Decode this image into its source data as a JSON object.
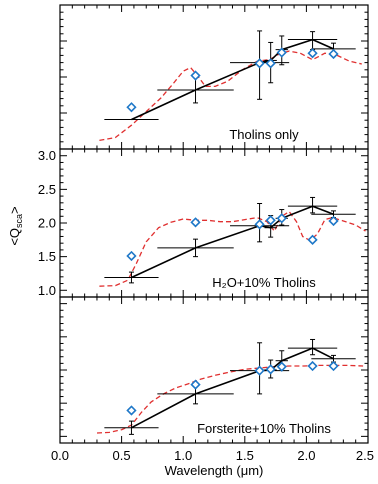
{
  "figure": {
    "ylabel": "<Q",
    "ylabel_sub": "sca",
    "ylabel_end": ">",
    "xlabel": "Wavelength (μm)"
  },
  "colors": {
    "measured": "#000000",
    "model_markers": "#1f78c8",
    "model_curve": "#e03030"
  },
  "chart_data": [
    {
      "type": "line",
      "panel_label": "Tholins only",
      "xlim": [
        0.0,
        2.5
      ],
      "ylim": [
        1.0,
        3.0
      ],
      "show_y_ticklabels": false,
      "series": [
        {
          "kind": "measured",
          "x": [
            0.58,
            1.1,
            1.62,
            1.71,
            1.8,
            2.05,
            2.22
          ],
          "y": [
            1.41,
            1.82,
            2.2,
            2.23,
            2.38,
            2.52,
            2.39
          ],
          "x_err": [
            0.22,
            0.31,
            0.24,
            0.05,
            0.05,
            0.2,
            0.18
          ],
          "y_err_low": [
            0.0,
            0.18,
            0.51,
            0.31,
            0.21,
            0.14,
            0.08
          ],
          "y_err_high": [
            0.0,
            0.18,
            0.44,
            0.25,
            0.19,
            0.11,
            0.08
          ]
        },
        {
          "kind": "model_points",
          "x": [
            0.58,
            1.1,
            1.62,
            1.71,
            1.8,
            2.05,
            2.22
          ],
          "y": [
            1.58,
            2.02,
            2.19,
            2.19,
            2.34,
            2.33,
            2.32
          ]
        },
        {
          "kind": "model_curve",
          "x": [
            0.32,
            0.45,
            0.58,
            0.7,
            0.82,
            0.92,
            1.0,
            1.06,
            1.12,
            1.18,
            1.26,
            1.36,
            1.48,
            1.6,
            1.7,
            1.78,
            1.86,
            1.95,
            2.05,
            2.15,
            2.25,
            2.35,
            2.45
          ],
          "y": [
            1.12,
            1.16,
            1.33,
            1.52,
            1.71,
            1.91,
            2.08,
            2.13,
            2.01,
            1.87,
            1.87,
            1.94,
            2.1,
            2.22,
            2.24,
            2.32,
            2.36,
            2.33,
            2.24,
            2.33,
            2.3,
            2.22,
            2.18
          ]
        }
      ]
    },
    {
      "type": "line",
      "panel_label": "H₂O+10% Tholins",
      "xlim": [
        0.0,
        2.5
      ],
      "ylim": [
        0.9,
        3.1
      ],
      "show_y_ticklabels": true,
      "yticks": [
        1.0,
        1.5,
        2.0,
        2.5,
        3.0
      ],
      "series": [
        {
          "kind": "measured",
          "x": [
            0.58,
            1.1,
            1.62,
            1.71,
            1.8,
            2.05,
            2.22
          ],
          "y": [
            1.19,
            1.63,
            1.96,
            1.93,
            2.07,
            2.25,
            2.13
          ],
          "x_err": [
            0.22,
            0.31,
            0.24,
            0.05,
            0.05,
            0.2,
            0.18
          ],
          "y_err_low": [
            0.08,
            0.13,
            0.24,
            0.14,
            0.1,
            0.1,
            0.05
          ],
          "y_err_high": [
            0.08,
            0.13,
            0.33,
            0.18,
            0.13,
            0.13,
            0.05
          ]
        },
        {
          "kind": "model_points",
          "x": [
            0.58,
            1.1,
            1.62,
            1.71,
            1.8,
            2.05,
            2.22
          ],
          "y": [
            1.51,
            2.01,
            1.98,
            2.04,
            2.07,
            1.75,
            2.03
          ]
        },
        {
          "kind": "model_curve",
          "x": [
            0.32,
            0.45,
            0.55,
            0.62,
            0.7,
            0.8,
            0.9,
            1.0,
            1.1,
            1.2,
            1.3,
            1.4,
            1.5,
            1.6,
            1.68,
            1.74,
            1.8,
            1.86,
            1.92,
            1.97,
            2.03,
            2.09,
            2.15,
            2.21,
            2.3,
            2.4,
            2.48
          ],
          "y": [
            1.06,
            1.07,
            1.15,
            1.4,
            1.72,
            1.93,
            2.01,
            2.06,
            2.04,
            2.04,
            2.02,
            2.02,
            2.05,
            2.08,
            2.02,
            1.88,
            2.1,
            2.17,
            2.02,
            1.8,
            1.74,
            1.84,
            2.05,
            2.08,
            2.03,
            1.97,
            1.88
          ]
        }
      ]
    },
    {
      "type": "line",
      "panel_label": "Forsterite+10% Tholins",
      "xlim": [
        0.0,
        2.5
      ],
      "ylim": [
        0.9,
        3.1
      ],
      "show_y_ticklabels": false,
      "series": [
        {
          "kind": "measured",
          "x": [
            0.58,
            1.1,
            1.62,
            1.71,
            1.8,
            2.05,
            2.22
          ],
          "y": [
            1.13,
            1.64,
            1.99,
            2.0,
            2.14,
            2.33,
            2.17
          ],
          "x_err": [
            0.22,
            0.31,
            0.24,
            0.05,
            0.05,
            0.2,
            0.18
          ],
          "y_err_low": [
            0.1,
            0.15,
            0.35,
            0.12,
            0.12,
            0.1,
            0.05
          ],
          "y_err_high": [
            0.1,
            0.15,
            0.42,
            0.15,
            0.15,
            0.13,
            0.05
          ]
        },
        {
          "kind": "model_points",
          "x": [
            0.58,
            1.1,
            1.62,
            1.71,
            1.8,
            2.05,
            2.22
          ],
          "y": [
            1.39,
            1.78,
            1.99,
            2.01,
            2.05,
            2.06,
            2.06
          ]
        },
        {
          "kind": "model_curve",
          "x": [
            0.3,
            0.4,
            0.5,
            0.58,
            0.66,
            0.74,
            0.84,
            0.94,
            1.04,
            1.14,
            1.26,
            1.38,
            1.5,
            1.62,
            1.74,
            1.86,
            1.98,
            2.1,
            2.22,
            2.34,
            2.46
          ],
          "y": [
            1.05,
            1.06,
            1.1,
            1.17,
            1.36,
            1.52,
            1.64,
            1.73,
            1.79,
            1.86,
            1.92,
            1.97,
            2.01,
            2.03,
            2.05,
            2.06,
            2.06,
            2.07,
            2.07,
            2.07,
            2.06
          ]
        }
      ]
    }
  ],
  "x_axis": {
    "ticks": [
      0.0,
      0.5,
      1.0,
      1.5,
      2.0,
      2.5
    ],
    "tick_labels": [
      "0.0",
      "0.5",
      "1.0",
      "1.5",
      "2.0",
      "2.5"
    ]
  }
}
